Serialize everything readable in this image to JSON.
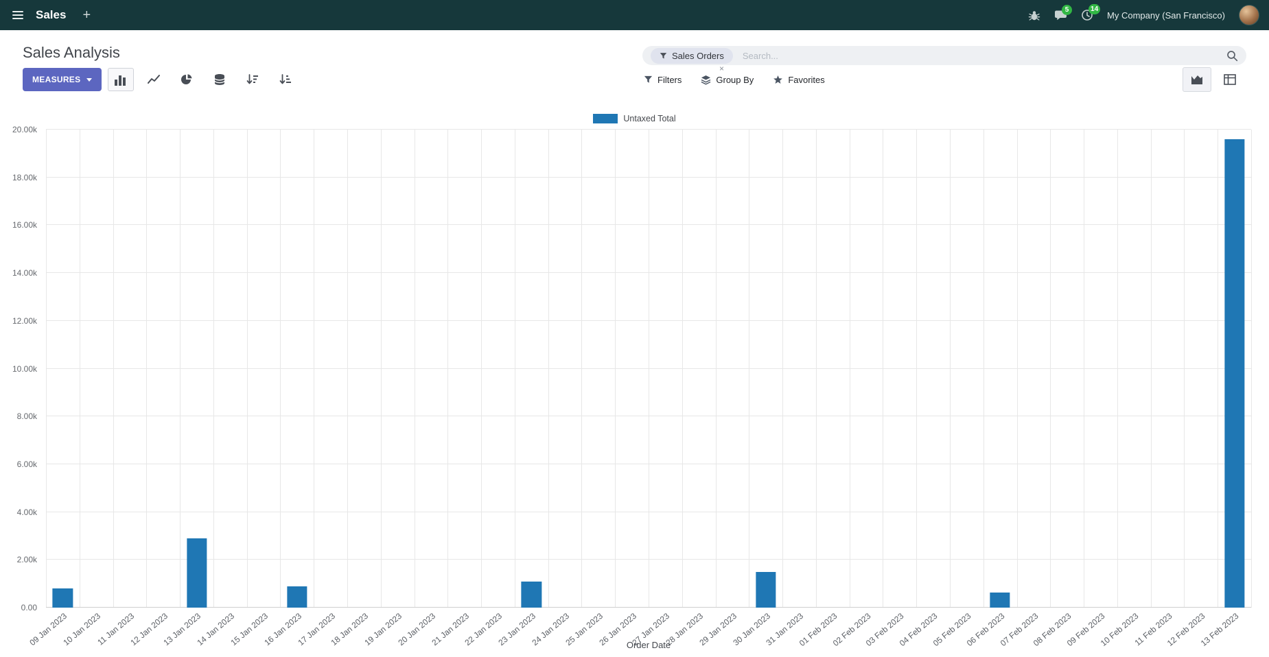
{
  "colors": {
    "navbar_bg": "#16383b",
    "primary": "#5c66c0",
    "bar": "#1f77b4",
    "badge_green": "#31b744"
  },
  "navbar": {
    "app_name": "Sales",
    "new_label": "+",
    "messages_badge": "5",
    "activities_badge": "14",
    "company": "My Company (San Francisco)"
  },
  "control_panel": {
    "title": "Sales Analysis",
    "measures_label": "MEASURES",
    "search": {
      "facet_label": "Sales Orders",
      "facet_remove": "×",
      "placeholder": "Search..."
    },
    "filters_label": "Filters",
    "group_by_label": "Group By",
    "favorites_label": "Favorites"
  },
  "chart_data": {
    "type": "bar",
    "title": "",
    "xlabel": "Order Date",
    "ylabel": "",
    "ylim": [
      0,
      20000
    ],
    "ytick_step": 2000,
    "grid": true,
    "legend_position": "top",
    "ytick_labels": [
      "0.00",
      "2.00k",
      "4.00k",
      "6.00k",
      "8.00k",
      "10.00k",
      "12.00k",
      "14.00k",
      "16.00k",
      "18.00k",
      "20.00k"
    ],
    "categories": [
      "09 Jan 2023",
      "10 Jan 2023",
      "11 Jan 2023",
      "12 Jan 2023",
      "13 Jan 2023",
      "14 Jan 2023",
      "15 Jan 2023",
      "16 Jan 2023",
      "17 Jan 2023",
      "18 Jan 2023",
      "19 Jan 2023",
      "20 Jan 2023",
      "21 Jan 2023",
      "22 Jan 2023",
      "23 Jan 2023",
      "24 Jan 2023",
      "25 Jan 2023",
      "26 Jan 2023",
      "27 Jan 2023",
      "28 Jan 2023",
      "29 Jan 2023",
      "30 Jan 2023",
      "31 Jan 2023",
      "01 Feb 2023",
      "02 Feb 2023",
      "03 Feb 2023",
      "04 Feb 2023",
      "05 Feb 2023",
      "06 Feb 2023",
      "07 Feb 2023",
      "08 Feb 2023",
      "09 Feb 2023",
      "10 Feb 2023",
      "11 Feb 2023",
      "12 Feb 2023",
      "13 Feb 2023"
    ],
    "series": [
      {
        "name": "Untaxed Total",
        "color": "#1f77b4",
        "values": [
          800,
          0,
          0,
          0,
          2900,
          0,
          0,
          900,
          0,
          0,
          0,
          0,
          0,
          0,
          1080,
          0,
          0,
          0,
          0,
          0,
          0,
          1500,
          0,
          0,
          0,
          0,
          0,
          0,
          620,
          0,
          0,
          0,
          0,
          0,
          0,
          19600
        ]
      }
    ]
  }
}
